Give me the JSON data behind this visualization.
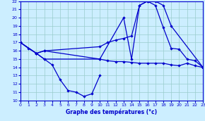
{
  "title": "Graphe des températures (°c)",
  "bg_color": "#cceeff",
  "line_color": "#0000cc",
  "grid_color": "#99cccc",
  "xlim": [
    0,
    23
  ],
  "ylim": [
    10,
    22
  ],
  "xticks": [
    0,
    1,
    2,
    3,
    4,
    5,
    6,
    7,
    8,
    9,
    10,
    11,
    12,
    13,
    14,
    15,
    16,
    17,
    18,
    19,
    20,
    21,
    22,
    23
  ],
  "yticks": [
    10,
    11,
    12,
    13,
    14,
    15,
    16,
    17,
    18,
    19,
    20,
    21,
    22
  ],
  "line1_x": [
    0,
    1,
    2,
    3,
    4,
    5,
    6,
    7,
    8,
    9,
    10
  ],
  "line1_y": [
    17,
    16.3,
    15.7,
    15.0,
    14.3,
    12.5,
    11.2,
    11.0,
    10.5,
    10.8,
    13.0
  ],
  "line2_x": [
    2,
    3,
    10,
    11,
    12,
    13,
    14,
    15,
    16,
    17,
    18,
    19,
    20,
    21,
    22,
    23
  ],
  "line2_y": [
    15.7,
    15.0,
    15.0,
    14.8,
    14.7,
    14.7,
    14.6,
    14.5,
    14.5,
    14.5,
    14.5,
    14.3,
    14.2,
    14.5,
    14.2,
    14.0
  ],
  "line3_x": [
    0,
    2,
    3,
    10,
    11,
    12,
    13,
    14,
    15,
    16,
    17,
    18,
    19,
    23
  ],
  "line3_y": [
    17,
    15.7,
    16.0,
    16.5,
    17.0,
    17.3,
    17.5,
    17.8,
    21.5,
    22.0,
    22.0,
    21.5,
    19.0,
    14.0
  ],
  "line4_x": [
    0,
    2,
    3,
    10,
    13,
    14,
    15,
    16,
    17,
    18,
    19,
    20,
    21,
    22,
    23
  ],
  "line4_y": [
    17,
    15.7,
    16.0,
    15.0,
    20.0,
    15.0,
    21.5,
    22.0,
    21.5,
    18.8,
    16.3,
    16.2,
    15.0,
    14.8,
    14.0
  ]
}
